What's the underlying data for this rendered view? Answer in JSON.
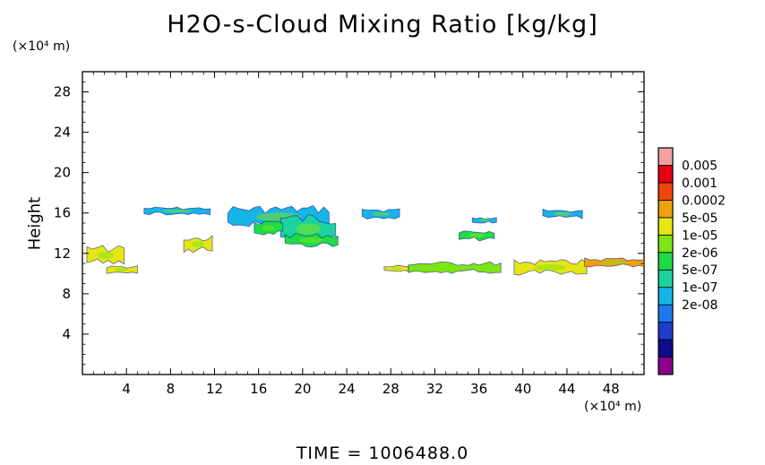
{
  "chart_data": {
    "type": "heatmap",
    "title": "H2O-s-Cloud Mixing Ratio [kg/kg]",
    "ylabel": "Height",
    "x_unit": "(×10⁴ m)",
    "y_unit": "(×10⁴ m)",
    "xlim": [
      0,
      51
    ],
    "ylim": [
      0,
      30
    ],
    "x_ticks": [
      "4",
      "8",
      "12",
      "16",
      "20",
      "24",
      "28",
      "32",
      "36",
      "40",
      "44",
      "48"
    ],
    "y_ticks": [
      "4",
      "8",
      "12",
      "16",
      "20",
      "24",
      "28"
    ],
    "colorbar": {
      "labels": [
        "0.005",
        "0.001",
        "0.0002",
        "5e-05",
        "1e-05",
        "2e-06",
        "5e-07",
        "1e-07",
        "2e-08"
      ],
      "colors": [
        "#8b008b",
        "#0c0c8c",
        "#1e3ccc",
        "#1e78f0",
        "#17b4e6",
        "#1ed2a0",
        "#1edc46",
        "#7ce614",
        "#e6e614",
        "#f0a00a",
        "#f0460a",
        "#e60014",
        "#f4a0a0"
      ]
    },
    "cloud_regions": [
      {
        "x": [
          5.6,
          11.6
        ],
        "y": [
          15.8,
          16.6
        ],
        "level": "1e-07"
      },
      {
        "x": [
          13.2,
          22.4
        ],
        "y": [
          14.4,
          16.8
        ],
        "level": "1e-07"
      },
      {
        "x": [
          18.0,
          23.0
        ],
        "y": [
          12.8,
          16.0
        ],
        "level": "5e-07"
      },
      {
        "x": [
          18.4,
          23.2
        ],
        "y": [
          12.6,
          14.0
        ],
        "level": "2e-06"
      },
      {
        "x": [
          15.6,
          18.2
        ],
        "y": [
          13.8,
          15.2
        ],
        "level": "2e-06"
      },
      {
        "x": [
          25.4,
          28.8
        ],
        "y": [
          15.4,
          16.4
        ],
        "level": "1e-07"
      },
      {
        "x": [
          35.4,
          37.6
        ],
        "y": [
          15.0,
          15.6
        ],
        "level": "1e-07"
      },
      {
        "x": [
          41.8,
          45.4
        ],
        "y": [
          15.4,
          16.4
        ],
        "level": "1e-07"
      },
      {
        "x": [
          34.2,
          37.4
        ],
        "y": [
          13.2,
          14.4
        ],
        "level": "2e-06"
      },
      {
        "x": [
          9.2,
          11.8
        ],
        "y": [
          12.0,
          13.8
        ],
        "level": "5e-05"
      },
      {
        "x": [
          0.4,
          3.8
        ],
        "y": [
          10.8,
          12.8
        ],
        "level": "5e-05"
      },
      {
        "x": [
          2.2,
          5.0
        ],
        "y": [
          10.0,
          10.8
        ],
        "level": "5e-05"
      },
      {
        "x": [
          39.2,
          45.8
        ],
        "y": [
          9.8,
          11.4
        ],
        "level": "5e-05"
      },
      {
        "x": [
          45.6,
          51.0
        ],
        "y": [
          10.6,
          11.6
        ],
        "level": "0.0002"
      },
      {
        "x": [
          29.6,
          38.0
        ],
        "y": [
          10.0,
          11.2
        ],
        "level": "1e-05"
      },
      {
        "x": [
          27.4,
          29.6
        ],
        "y": [
          10.2,
          10.8
        ],
        "level": "5e-05"
      }
    ]
  },
  "footer": {
    "time_label": "TIME = 1006488.0"
  }
}
